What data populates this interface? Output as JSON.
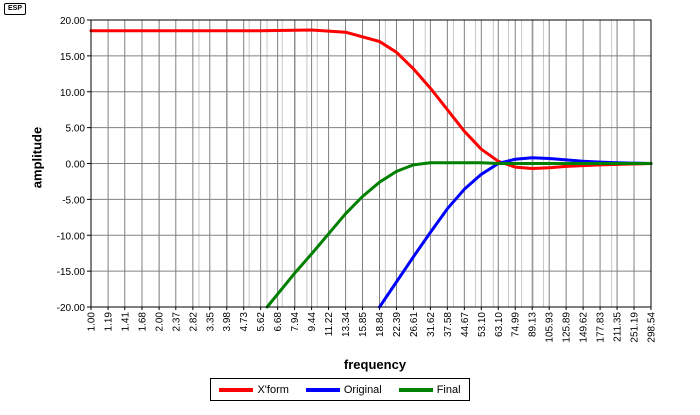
{
  "logo": {
    "text": "ESP"
  },
  "chart_data": {
    "type": "line",
    "xlabel": "frequency",
    "ylabel": "amplitude",
    "x_scale": "log",
    "xlim": [
      1.0,
      298.54
    ],
    "ylim": [
      -20,
      20
    ],
    "y_ticks": [
      "20.00",
      "15.00",
      "10.00",
      "5.00",
      "0.00",
      "-5.00",
      "-10.00",
      "-15.00",
      "-20.00"
    ],
    "x_tick_labels": [
      "1.00",
      "1.19",
      "1.41",
      "1.68",
      "2.00",
      "2.37",
      "2.82",
      "3.35",
      "3.98",
      "4.73",
      "5.62",
      "6.68",
      "7.94",
      "9.44",
      "11.22",
      "13.34",
      "15.85",
      "18.84",
      "22.39",
      "26.61",
      "31.62",
      "37.58",
      "44.67",
      "53.10",
      "63.10",
      "74.99",
      "89.13",
      "105.93",
      "125.89",
      "149.62",
      "177.83",
      "211.35",
      "251.19",
      "298.54"
    ],
    "series": [
      {
        "name": "X'form",
        "color": "#ff0000",
        "x": [
          1.0,
          5.62,
          9.44,
          13.34,
          18.84,
          22.39,
          26.61,
          31.62,
          37.58,
          44.67,
          53.1,
          63.1,
          74.99,
          89.13,
          105.93,
          125.89,
          177.83,
          298.54
        ],
        "y": [
          18.5,
          18.5,
          18.6,
          18.3,
          17.0,
          15.5,
          13.2,
          10.5,
          7.5,
          4.5,
          2.0,
          0.3,
          -0.5,
          -0.7,
          -0.6,
          -0.4,
          -0.2,
          0.0
        ]
      },
      {
        "name": "Original",
        "color": "#0000ff",
        "x": [
          18.84,
          22.39,
          26.61,
          31.62,
          37.58,
          44.67,
          53.1,
          63.1,
          74.99,
          89.13,
          105.93,
          125.89,
          149.62,
          177.83,
          211.35,
          298.54
        ],
        "y": [
          -20.0,
          -16.5,
          -13.0,
          -9.6,
          -6.3,
          -3.6,
          -1.5,
          0.0,
          0.6,
          0.8,
          0.7,
          0.5,
          0.3,
          0.2,
          0.1,
          0.0
        ]
      },
      {
        "name": "Final",
        "color": "#008000",
        "x": [
          6.0,
          7.94,
          9.44,
          11.22,
          13.34,
          15.85,
          18.84,
          22.39,
          26.61,
          31.62,
          37.58,
          44.67,
          53.1,
          63.1,
          298.54
        ],
        "y": [
          -20.0,
          -15.3,
          -12.6,
          -9.8,
          -7.0,
          -4.6,
          -2.6,
          -1.1,
          -0.2,
          0.1,
          0.1,
          0.1,
          0.1,
          0.0,
          0.0
        ]
      }
    ]
  }
}
